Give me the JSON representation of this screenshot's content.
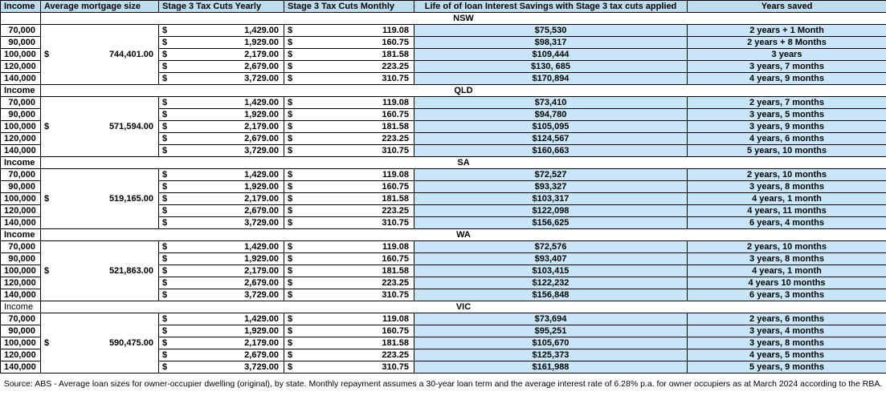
{
  "table": {
    "currency_symbol": "$",
    "headers": [
      {
        "label": "Income",
        "align": "left"
      },
      {
        "label": "Average mortgage size",
        "align": "left"
      },
      {
        "label": "Stage 3 Tax Cuts Yearly",
        "align": "left"
      },
      {
        "label": "Stage 3 Tax Cuts Monthly",
        "align": "left"
      },
      {
        "label": "Life of of loan Interest Savings with Stage 3 tax cuts applied",
        "align": "center"
      },
      {
        "label": "Years saved",
        "align": "center"
      }
    ],
    "sections": [
      {
        "state": "NSW",
        "income_label": "",
        "income_label_bold": true,
        "avg_mortgage": "744,401.00",
        "rows": [
          {
            "income": "70,000",
            "yearly": "1,429.00",
            "monthly": "119.08",
            "savings": "$75,530",
            "years_saved": "2 years + 1 Month"
          },
          {
            "income": "90,000",
            "yearly": "1,929.00",
            "monthly": "160.75",
            "savings": "$98,317",
            "years_saved": "2 years + 8 Months"
          },
          {
            "income": "100,000",
            "yearly": "2,179.00",
            "monthly": "181.58",
            "savings": "$109,444",
            "years_saved": "3 years"
          },
          {
            "income": "120,000",
            "yearly": "2,679.00",
            "monthly": "223.25",
            "savings": "$130, 685",
            "years_saved": "3 years, 7 months"
          },
          {
            "income": "140,000",
            "yearly": "3,729.00",
            "monthly": "310.75",
            "savings": "$170,894",
            "years_saved": "4 years, 9 months"
          }
        ]
      },
      {
        "state": "QLD",
        "income_label": "Income",
        "income_label_bold": true,
        "avg_mortgage": "571,594.00",
        "rows": [
          {
            "income": "70,000",
            "yearly": "1,429.00",
            "monthly": "119.08",
            "savings": "$73,410",
            "years_saved": "2 years, 7 months"
          },
          {
            "income": "90,000",
            "yearly": "1,929.00",
            "monthly": "160.75",
            "savings": "$94,780",
            "years_saved": "3 years, 5 months"
          },
          {
            "income": "100,000",
            "yearly": "2,179.00",
            "monthly": "181.58",
            "savings": "$105,095",
            "years_saved": "3 years, 9 months"
          },
          {
            "income": "120,000",
            "yearly": "2,679.00",
            "monthly": "223.25",
            "savings": "$124,567",
            "years_saved": "4 years, 6 months"
          },
          {
            "income": "140,000",
            "yearly": "3,729.00",
            "monthly": "310.75",
            "savings": "$160,663",
            "years_saved": "5 years, 10 months"
          }
        ]
      },
      {
        "state": "SA",
        "income_label": "Income",
        "income_label_bold": true,
        "avg_mortgage": "519,165.00",
        "rows": [
          {
            "income": "70,000",
            "yearly": "1,429.00",
            "monthly": "119.08",
            "savings": "$72,527",
            "years_saved": "2 years, 10 months"
          },
          {
            "income": "90,000",
            "yearly": "1,929.00",
            "monthly": "160.75",
            "savings": "$93,327",
            "years_saved": "3 years, 8 months"
          },
          {
            "income": "100,000",
            "yearly": "2,179.00",
            "monthly": "181.58",
            "savings": "$103,317",
            "years_saved": "4 years, 1 month"
          },
          {
            "income": "120,000",
            "yearly": "2,679.00",
            "monthly": "223.25",
            "savings": "$122,098",
            "years_saved": "4 years, 11 months"
          },
          {
            "income": "140,000",
            "yearly": "3,729.00",
            "monthly": "310.75",
            "savings": "$156,625",
            "years_saved": "6 years, 4 months"
          }
        ]
      },
      {
        "state": "WA",
        "income_label": "Income",
        "income_label_bold": true,
        "avg_mortgage": "521,863.00",
        "rows": [
          {
            "income": "70,000",
            "yearly": "1,429.00",
            "monthly": "119.08",
            "savings": "$72,576",
            "years_saved": "2 years, 10 months"
          },
          {
            "income": "90,000",
            "yearly": "1,929.00",
            "monthly": "160.75",
            "savings": "$93,407",
            "years_saved": "3 years, 8 months"
          },
          {
            "income": "100,000",
            "yearly": "2,179.00",
            "monthly": "181.58",
            "savings": "$103,415",
            "years_saved": "4 years, 1 month"
          },
          {
            "income": "120,000",
            "yearly": "2,679.00",
            "monthly": "223.25",
            "savings": "$122,232",
            "years_saved": "4 years 10 months"
          },
          {
            "income": "140,000",
            "yearly": "3,729.00",
            "monthly": "310.75",
            "savings": "$156,848",
            "years_saved": "6 years, 3 months"
          }
        ]
      },
      {
        "state": "VIC",
        "income_label": "Income",
        "income_label_bold": false,
        "avg_mortgage": "590,475.00",
        "rows": [
          {
            "income": "70,000",
            "yearly": "1,429.00",
            "monthly": "119.08",
            "savings": "$73,694",
            "years_saved": "2 years, 6 months"
          },
          {
            "income": "90,000",
            "yearly": "1,929.00",
            "monthly": "160.75",
            "savings": "$95,251",
            "years_saved": "3 years, 4 months"
          },
          {
            "income": "100,000",
            "yearly": "2,179.00",
            "monthly": "181.58",
            "savings": "$105,670",
            "years_saved": "3 years, 8 months"
          },
          {
            "income": "120,000",
            "yearly": "2,679.00",
            "monthly": "223.25",
            "savings": "$125,373",
            "years_saved": "4 years, 5 months"
          },
          {
            "income": "140,000",
            "yearly": "3,729.00",
            "monthly": "310.75",
            "savings": "$161,988",
            "years_saved": "5 years, 9 months"
          }
        ]
      }
    ]
  },
  "footer": {
    "source_note": "Source: ABS - Average loan sizes for owner-occupier dwelling (original), by state. Monthly repayment assumes a 30-year loan term and the average interest rate of 6.28% p.a. for owner occupiers as at March 2024 according to the RBA."
  },
  "colors": {
    "header_fill": "#BEDCF0",
    "cell_fill": "#C8E6F8",
    "border": "#000000"
  }
}
